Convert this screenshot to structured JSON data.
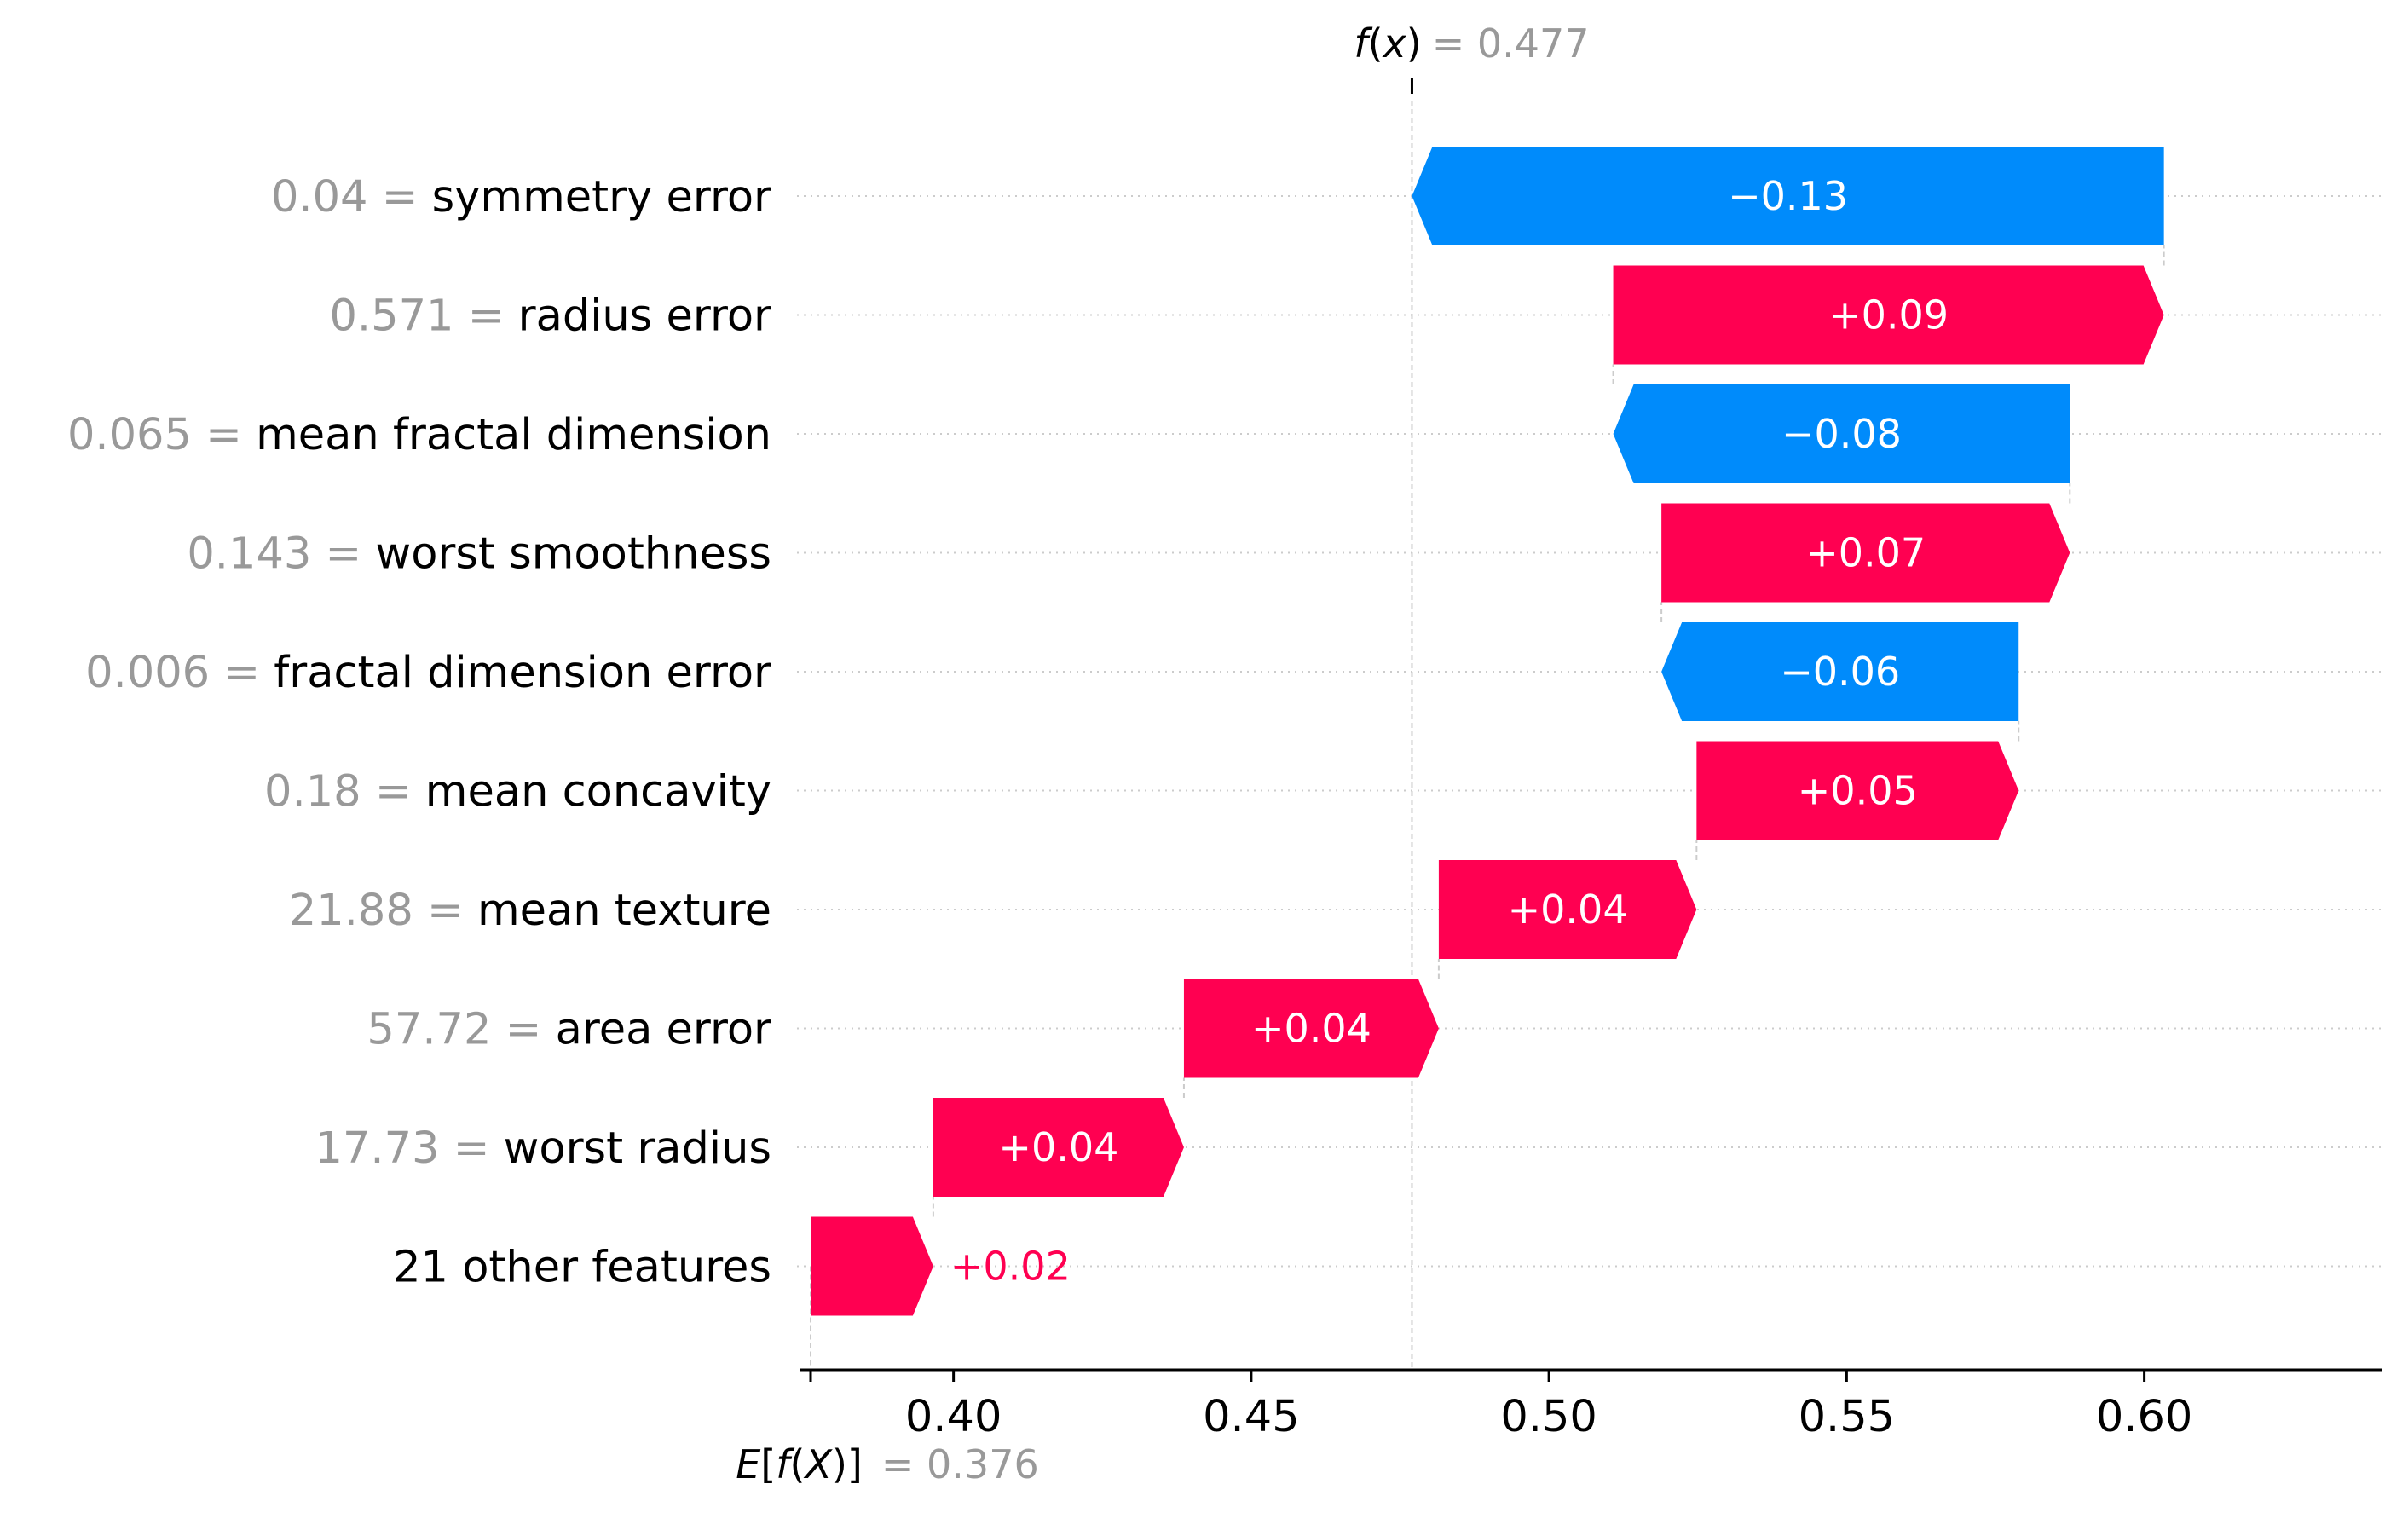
{
  "chart_data": {
    "type": "waterfall",
    "title": "",
    "xlabel": "",
    "ylabel": "",
    "xlim": [
      0.376,
      0.64
    ],
    "x_ticks": [
      0.4,
      0.45,
      0.5,
      0.55,
      0.6
    ],
    "x_tick_labels": [
      "0.40",
      "0.45",
      "0.50",
      "0.55",
      "0.60"
    ],
    "output": {
      "label_f": "f",
      "label_x": "x",
      "value": 0.477,
      "value_text": "= 0.477"
    },
    "base": {
      "label_E": "E",
      "label_f": "f",
      "label_X": "X",
      "value": 0.376,
      "value_text": "= 0.376"
    },
    "features": [
      {
        "value_text": "0.04 =",
        "name": "symmetry error",
        "shap": -0.13,
        "label": "−0.13",
        "start": 0.6033,
        "end": 0.477
      },
      {
        "value_text": "0.571 =",
        "name": "radius error",
        "shap": 0.09,
        "label": "+0.09",
        "start": 0.5108,
        "end": 0.6033
      },
      {
        "value_text": "0.065 =",
        "name": "mean fractal dimension",
        "shap": -0.08,
        "label": "−0.08",
        "start": 0.5875,
        "end": 0.5108
      },
      {
        "value_text": "0.143 =",
        "name": "worst smoothness",
        "shap": 0.07,
        "label": "+0.07",
        "start": 0.5189,
        "end": 0.5875
      },
      {
        "value_text": "0.006 =",
        "name": "fractal dimension error",
        "shap": -0.06,
        "label": "−0.06",
        "start": 0.5789,
        "end": 0.5189
      },
      {
        "value_text": "0.18 =",
        "name": "mean concavity",
        "shap": 0.05,
        "label": "+0.05",
        "start": 0.5248,
        "end": 0.5789
      },
      {
        "value_text": "21.88 =",
        "name": "mean texture",
        "shap": 0.04,
        "label": "+0.04",
        "start": 0.4815,
        "end": 0.5248
      },
      {
        "value_text": "57.72 =",
        "name": "area error",
        "shap": 0.04,
        "label": "+0.04",
        "start": 0.4387,
        "end": 0.4815
      },
      {
        "value_text": "17.73 =",
        "name": "worst radius",
        "shap": 0.04,
        "label": "+0.04",
        "start": 0.3966,
        "end": 0.4387
      },
      {
        "value_text": "",
        "name": "21 other features",
        "shap": 0.02,
        "label": "+0.02",
        "start": 0.376,
        "end": 0.3966
      }
    ],
    "colors": {
      "positive": "#ff0051",
      "negative": "#008bfb",
      "axis": "#000000",
      "muted": "#999999",
      "gridline": "#cccccc"
    }
  }
}
